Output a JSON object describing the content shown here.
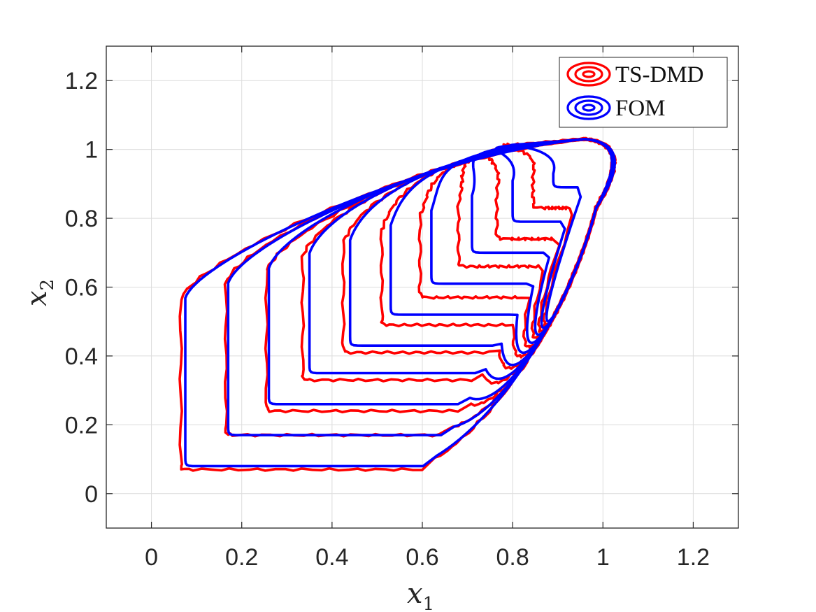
{
  "chart_data": {
    "type": "line",
    "title": "",
    "xlabel": {
      "base": "x",
      "sub": "1"
    },
    "ylabel": {
      "base": "x",
      "sub": "2"
    },
    "xlim": [
      -0.1,
      1.3
    ],
    "ylim": [
      -0.1,
      1.3
    ],
    "xticks": [
      0,
      0.2,
      0.4,
      0.6,
      0.8,
      1,
      1.2
    ],
    "yticks": [
      0,
      0.2,
      0.4,
      0.6,
      0.8,
      1,
      1.2
    ],
    "xtick_labels": [
      "0",
      "0.2",
      "0.4",
      "0.6",
      "0.8",
      "1",
      "1.2"
    ],
    "ytick_labels": [
      "0",
      "0.2",
      "0.4",
      "0.6",
      "0.8",
      "1",
      "1.2"
    ],
    "grid": true,
    "legend_position": "top-right",
    "series": [
      {
        "name": "TS-DMD",
        "color": "#ff0000",
        "curves": [
          {
            "x_left": 0.065,
            "y_bottom": 0.07
          },
          {
            "x_left": 0.165,
            "y_bottom": 0.17
          },
          {
            "x_left": 0.255,
            "y_bottom": 0.24
          },
          {
            "x_left": 0.335,
            "y_bottom": 0.33
          },
          {
            "x_left": 0.425,
            "y_bottom": 0.41
          },
          {
            "x_left": 0.51,
            "y_bottom": 0.49
          },
          {
            "x_left": 0.595,
            "y_bottom": 0.57
          },
          {
            "x_left": 0.68,
            "y_bottom": 0.66
          },
          {
            "x_left": 0.765,
            "y_bottom": 0.74
          },
          {
            "x_left": 0.845,
            "y_bottom": 0.83
          }
        ]
      },
      {
        "name": "FOM",
        "color": "#0000ff",
        "curves": [
          {
            "x_left": 0.075,
            "y_bottom": 0.08
          },
          {
            "x_left": 0.17,
            "y_bottom": 0.17
          },
          {
            "x_left": 0.26,
            "y_bottom": 0.26
          },
          {
            "x_left": 0.35,
            "y_bottom": 0.35
          },
          {
            "x_left": 0.44,
            "y_bottom": 0.43
          },
          {
            "x_left": 0.53,
            "y_bottom": 0.52
          },
          {
            "x_left": 0.62,
            "y_bottom": 0.61
          },
          {
            "x_left": 0.71,
            "y_bottom": 0.7
          },
          {
            "x_left": 0.8,
            "y_bottom": 0.79
          },
          {
            "x_left": 0.89,
            "y_bottom": 0.89
          }
        ]
      }
    ]
  }
}
